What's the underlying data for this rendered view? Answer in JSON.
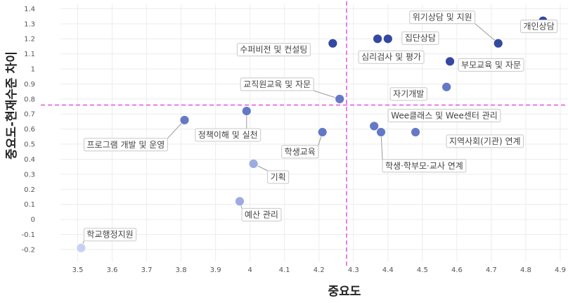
{
  "chart_data": {
    "type": "scatter",
    "title": "",
    "xlabel": "중요도",
    "ylabel": "중요도-현재수준 차이",
    "xlim": [
      3.45,
      4.9
    ],
    "ylim": [
      -0.28,
      1.43
    ],
    "x_ticks": [
      3.5,
      3.6,
      3.7,
      3.8,
      3.9,
      4,
      4.1,
      4.2,
      4.3,
      4.4,
      4.5,
      4.6,
      4.7,
      4.8,
      4.9
    ],
    "y_ticks": [
      -0.2,
      -0.1,
      0,
      0.1,
      0.2,
      0.3,
      0.4,
      0.5,
      0.6,
      0.7,
      0.8,
      0.9,
      1,
      1.1,
      1.2,
      1.3,
      1.4
    ],
    "reference_lines": {
      "x": 4.28,
      "y": 0.76,
      "color": "#e65ce6",
      "style": "dashed"
    },
    "grid": true,
    "colors": {
      "high": "#2a3f9e",
      "mid": "#5c72c4",
      "low": "#97a7e0",
      "lowest": "#c6d0f0"
    },
    "points": [
      {
        "label": "개인상담",
        "x": 4.85,
        "y": 1.32,
        "shade": "high"
      },
      {
        "label": "위기상담 및 지원",
        "x": 4.72,
        "y": 1.17,
        "shade": "high"
      },
      {
        "label": "부모교육 및 자문",
        "x": 4.58,
        "y": 1.05,
        "shade": "high"
      },
      {
        "label": "집단상담",
        "x": 4.4,
        "y": 1.2,
        "shade": "high"
      },
      {
        "label": "심리검사 및 평가",
        "x": 4.37,
        "y": 1.2,
        "shade": "high"
      },
      {
        "label": "수퍼비전 및 컨설팅",
        "x": 4.24,
        "y": 1.17,
        "shade": "high"
      },
      {
        "label": "자기개발",
        "x": 4.57,
        "y": 0.88,
        "shade": "mid"
      },
      {
        "label": "교직원교육 및 자문",
        "x": 4.26,
        "y": 0.8,
        "shade": "mid"
      },
      {
        "label": "Wee클래스 및 Wee센터 관리",
        "x": 4.36,
        "y": 0.62,
        "shade": "mid"
      },
      {
        "label": "학생·학부모·교사 연계",
        "x": 4.38,
        "y": 0.58,
        "shade": "mid"
      },
      {
        "label": "지역사회(기관) 연계",
        "x": 4.48,
        "y": 0.58,
        "shade": "mid"
      },
      {
        "label": "학생교육",
        "x": 4.21,
        "y": 0.58,
        "shade": "mid"
      },
      {
        "label": "정책이해 및 실천",
        "x": 3.99,
        "y": 0.72,
        "shade": "mid"
      },
      {
        "label": "프로그램 개발 및 운영",
        "x": 3.81,
        "y": 0.66,
        "shade": "mid"
      },
      {
        "label": "기획",
        "x": 4.01,
        "y": 0.37,
        "shade": "low"
      },
      {
        "label": "예산 관리",
        "x": 3.97,
        "y": 0.12,
        "shade": "low"
      },
      {
        "label": "학교행정지원",
        "x": 3.51,
        "y": -0.19,
        "shade": "lowest"
      }
    ]
  }
}
